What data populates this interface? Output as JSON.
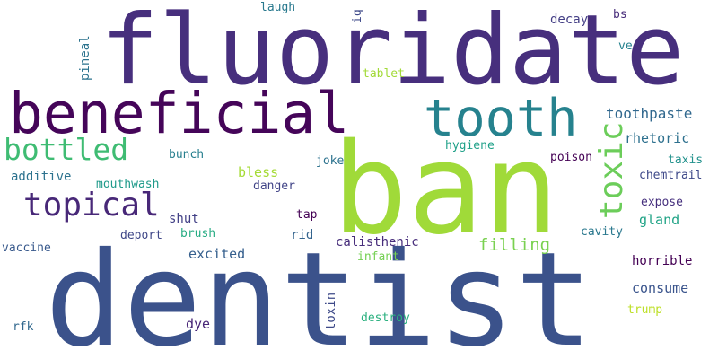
{
  "word_cloud": {
    "words": [
      {
        "text": "dentist",
        "color": "#3b528b"
      },
      {
        "text": "ban",
        "color": "#a0da39"
      },
      {
        "text": "fluoridate",
        "color": "#472f7d"
      },
      {
        "text": "beneficial",
        "color": "#450559"
      },
      {
        "text": "tooth",
        "color": "#26828e"
      },
      {
        "text": "bottled",
        "color": "#3fbc73"
      },
      {
        "text": "topical",
        "color": "#482878"
      },
      {
        "text": "toxic",
        "color": "#6ccd5a"
      },
      {
        "text": "toothpaste",
        "color": "#31688e"
      },
      {
        "text": "rhetoric",
        "color": "#2d708e"
      },
      {
        "text": "hygiene",
        "color": "#1fa088"
      },
      {
        "text": "poison",
        "color": "#440154"
      },
      {
        "text": "taxis",
        "color": "#21918c"
      },
      {
        "text": "chemtrail",
        "color": "#3e4989"
      },
      {
        "text": "expose",
        "color": "#46307e"
      },
      {
        "text": "gland",
        "color": "#20a386"
      },
      {
        "text": "cavity",
        "color": "#2a788e"
      },
      {
        "text": "horrible",
        "color": "#440154"
      },
      {
        "text": "consume",
        "color": "#3a548c"
      },
      {
        "text": "trump",
        "color": "#bddf26"
      },
      {
        "text": "filling",
        "color": "#7ad151"
      },
      {
        "text": "calisthenic",
        "color": "#472d7b"
      },
      {
        "text": "infant",
        "color": "#75d054"
      },
      {
        "text": "destroy",
        "color": "#2ab07f"
      },
      {
        "text": "toxin",
        "color": "#3e4a89"
      },
      {
        "text": "excited",
        "color": "#355f8d"
      },
      {
        "text": "dye",
        "color": "#482677"
      },
      {
        "text": "rid",
        "color": "#33638d"
      },
      {
        "text": "tap",
        "color": "#440154"
      },
      {
        "text": "danger",
        "color": "#414487"
      },
      {
        "text": "joke",
        "color": "#2c728e"
      },
      {
        "text": "bless",
        "color": "#a5db36"
      },
      {
        "text": "bunch",
        "color": "#277f8e"
      },
      {
        "text": "shut",
        "color": "#424086"
      },
      {
        "text": "brush",
        "color": "#25ab82"
      },
      {
        "text": "deport",
        "color": "#3f4788"
      },
      {
        "text": "mouthwash",
        "color": "#1f9a8a"
      },
      {
        "text": "additive",
        "color": "#2c728e"
      },
      {
        "text": "vaccine",
        "color": "#38598c"
      },
      {
        "text": "rfk",
        "color": "#31688e"
      },
      {
        "text": "laugh",
        "color": "#29798e"
      },
      {
        "text": "iq",
        "color": "#3e4989"
      },
      {
        "text": "tablet",
        "color": "#a2da37"
      },
      {
        "text": "decay",
        "color": "#433e85"
      },
      {
        "text": "bs",
        "color": "#472c7a"
      },
      {
        "text": "ve",
        "color": "#26828e"
      },
      {
        "text": "pineal",
        "color": "#2c738e"
      }
    ]
  }
}
